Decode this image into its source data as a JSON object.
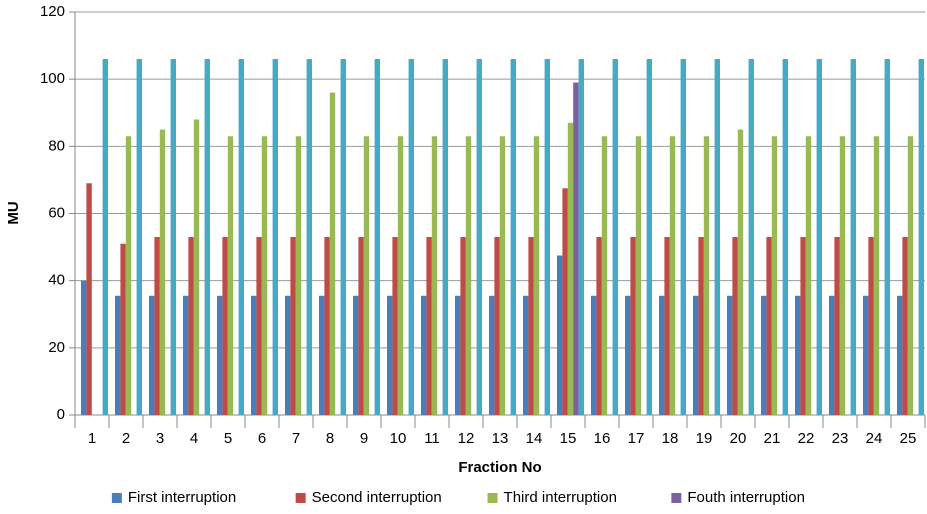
{
  "chart_data": {
    "type": "bar",
    "x_label": "Fraction No",
    "y_label": "MU",
    "categories": [
      "1",
      "2",
      "3",
      "4",
      "5",
      "6",
      "7",
      "8",
      "9",
      "10",
      "11",
      "12",
      "13",
      "14",
      "15",
      "16",
      "17",
      "18",
      "19",
      "20",
      "21",
      "22",
      "23",
      "24",
      "25"
    ],
    "series": [
      {
        "name": "First interruption",
        "color": "#4a7ebb",
        "values": [
          40,
          35.5,
          35.5,
          35.5,
          35.5,
          35.5,
          35.5,
          35.5,
          35.5,
          35.5,
          35.5,
          35.5,
          35.5,
          35.5,
          47.5,
          35.5,
          35.5,
          35.5,
          35.5,
          35.5,
          35.5,
          35.5,
          35.5,
          35.5,
          35.5
        ]
      },
      {
        "name": "Second interruption",
        "color": "#be4b48",
        "values": [
          69,
          51,
          53,
          53,
          53,
          53,
          53,
          53,
          53,
          53,
          53,
          53,
          53,
          53,
          67.5,
          53,
          53,
          53,
          53,
          53,
          53,
          53,
          53,
          53,
          53
        ]
      },
      {
        "name": "Third interruption",
        "color": "#98b954",
        "values": [
          null,
          83,
          85,
          88,
          83,
          83,
          83,
          96,
          83,
          83,
          83,
          83,
          83,
          83,
          87,
          83,
          83,
          83,
          83,
          85,
          83,
          83,
          83,
          83,
          83
        ]
      },
      {
        "name": "Fouth interruption",
        "color": "#7d60a0",
        "values": [
          null,
          null,
          null,
          null,
          null,
          null,
          null,
          null,
          null,
          null,
          null,
          null,
          null,
          null,
          99,
          null,
          null,
          null,
          null,
          null,
          null,
          null,
          null,
          null,
          null
        ]
      },
      {
        "color": "#46aac5",
        "values": [
          106,
          106,
          106,
          106,
          106,
          106,
          106,
          106,
          106,
          106,
          106,
          106,
          106,
          106,
          106,
          106,
          106,
          106,
          106,
          106,
          106,
          106,
          106,
          106,
          106
        ]
      }
    ],
    "ylim": [
      0,
      120
    ],
    "yticks": [
      0,
      20,
      40,
      60,
      80,
      100,
      120
    ],
    "grid": true,
    "legend": "bottom"
  }
}
